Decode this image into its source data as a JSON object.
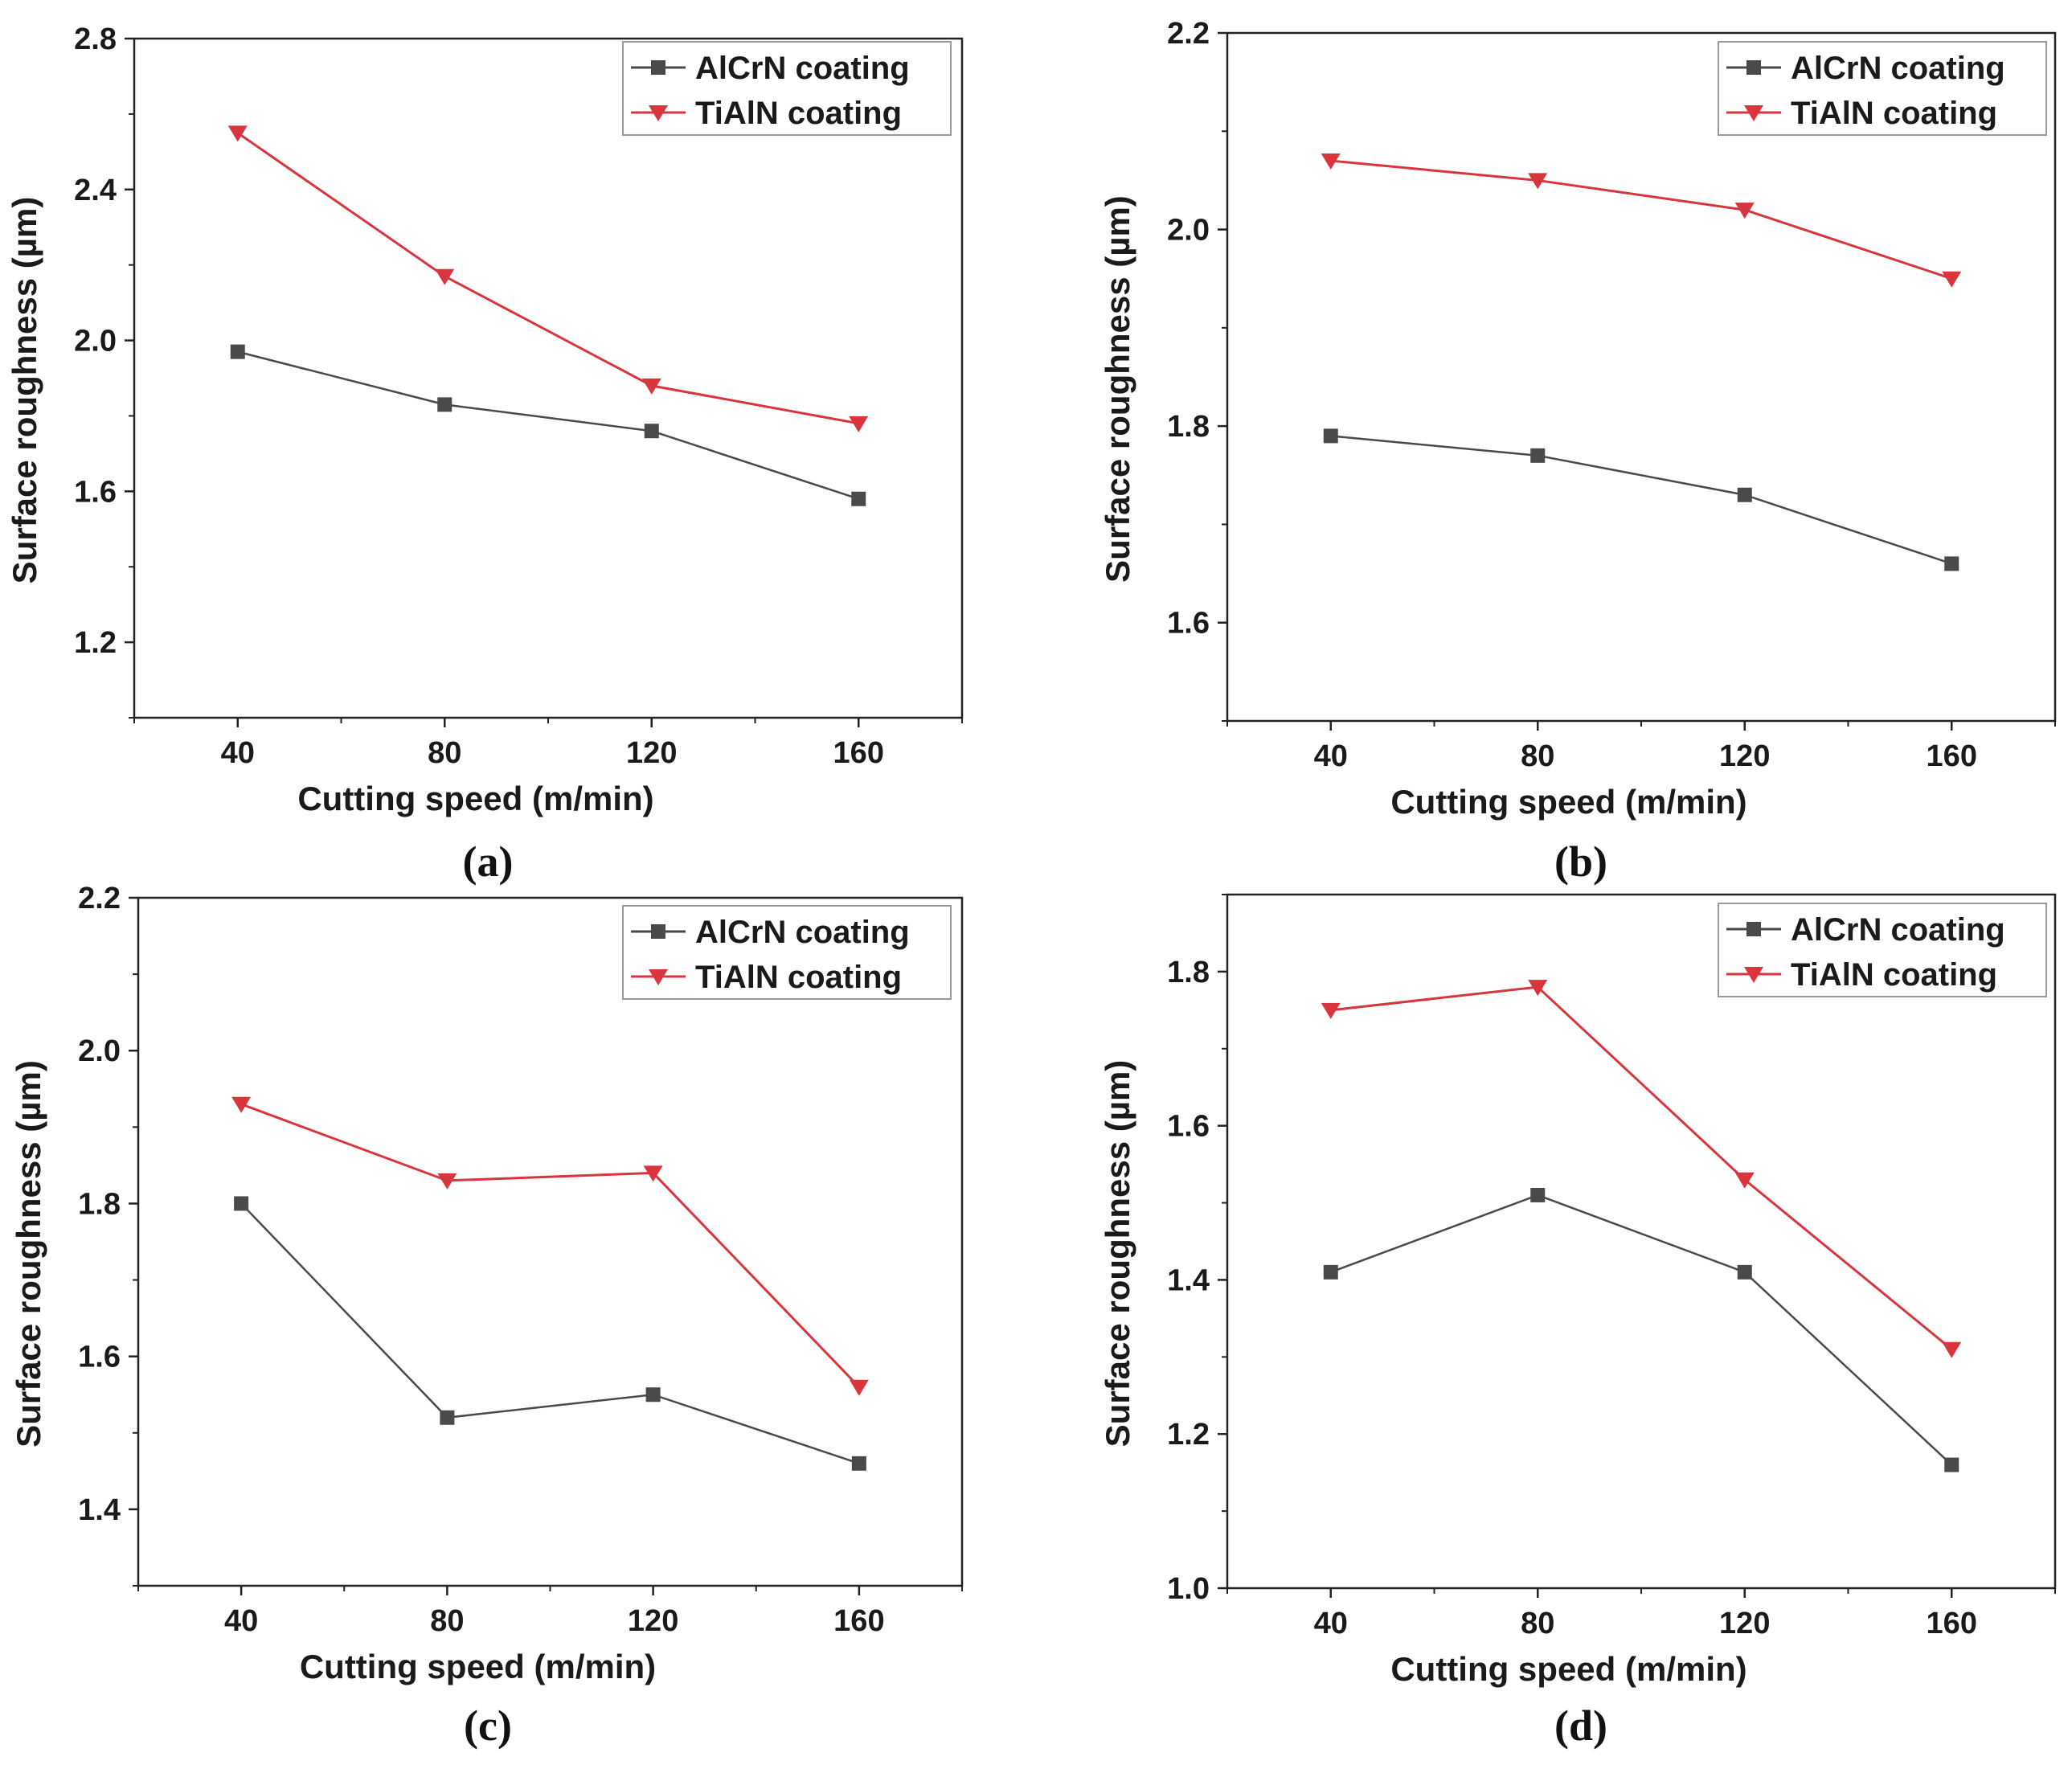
{
  "colors": {
    "aicrn": "#4a4a4a",
    "tiain": "#d8353c",
    "axis": "#222222"
  },
  "chart_data": [
    {
      "type": "line",
      "panel_label": "(a)",
      "xlabel": "Cutting speed (m/min)",
      "ylabel": "Surface roughness (µm)",
      "x": [
        40,
        80,
        120,
        160
      ],
      "xlim": [
        20,
        180
      ],
      "xticks": [
        40,
        80,
        120,
        160
      ],
      "xtick_labels": [
        "40",
        "80",
        "120",
        "160"
      ],
      "ylim": [
        1.0,
        2.8
      ],
      "yticks": [
        1.2,
        1.6,
        2.0,
        2.4,
        2.8
      ],
      "ytick_labels": [
        "1.2",
        "1.6",
        "2.0",
        "2.4",
        "2.8"
      ],
      "legend": "top-right",
      "series": [
        {
          "name": "AlCrN coating",
          "marker": "square",
          "values": [
            1.97,
            1.83,
            1.76,
            1.58
          ]
        },
        {
          "name": "TiAlN coating",
          "marker": "triangle-down",
          "values": [
            2.55,
            2.17,
            1.88,
            1.78
          ]
        }
      ]
    },
    {
      "type": "line",
      "panel_label": "(b)",
      "xlabel": "Cutting speed (m/min)",
      "ylabel": "Surface roughness (µm)",
      "x": [
        40,
        80,
        120,
        160
      ],
      "xlim": [
        20,
        180
      ],
      "xticks": [
        40,
        80,
        120,
        160
      ],
      "xtick_labels": [
        "40",
        "80",
        "120",
        "160"
      ],
      "ylim": [
        1.5,
        2.2
      ],
      "yticks": [
        1.6,
        1.8,
        2.0,
        2.2
      ],
      "ytick_labels": [
        "1.6",
        "1.8",
        "2.0",
        "2.2"
      ],
      "legend": "top-right",
      "series": [
        {
          "name": "AlCrN coating",
          "marker": "square",
          "values": [
            1.79,
            1.77,
            1.73,
            1.66
          ]
        },
        {
          "name": "TiAlN coating",
          "marker": "triangle-down",
          "values": [
            2.07,
            2.05,
            2.02,
            1.95
          ]
        }
      ]
    },
    {
      "type": "line",
      "panel_label": "(c)",
      "xlabel": "Cutting speed (m/min)",
      "ylabel": "Surface roughness (µm)",
      "x": [
        40,
        80,
        120,
        160
      ],
      "xlim": [
        20,
        180
      ],
      "xticks": [
        40,
        80,
        120,
        160
      ],
      "xtick_labels": [
        "40",
        "80",
        "120",
        "160"
      ],
      "ylim": [
        1.3,
        2.2
      ],
      "yticks": [
        1.4,
        1.6,
        1.8,
        2.0,
        2.2
      ],
      "ytick_labels": [
        "1.4",
        "1.6",
        "1.8",
        "2.0",
        "2.2"
      ],
      "legend": "top-right",
      "series": [
        {
          "name": "AlCrN coating",
          "marker": "square",
          "values": [
            1.8,
            1.52,
            1.55,
            1.46
          ]
        },
        {
          "name": "TiAlN coating",
          "marker": "triangle-down",
          "values": [
            1.93,
            1.83,
            1.84,
            1.56
          ]
        }
      ]
    },
    {
      "type": "line",
      "panel_label": "(d)",
      "xlabel": "Cutting speed (m/min)",
      "ylabel": "Surface roughness (µm)",
      "x": [
        40,
        80,
        120,
        160
      ],
      "xlim": [
        20,
        180
      ],
      "xticks": [
        40,
        80,
        120,
        160
      ],
      "xtick_labels": [
        "40",
        "80",
        "120",
        "160"
      ],
      "ylim": [
        1.0,
        1.9
      ],
      "yticks": [
        1.0,
        1.2,
        1.4,
        1.6,
        1.8
      ],
      "ytick_labels": [
        "1.0",
        "1.2",
        "1.4",
        "1.6",
        "1.8"
      ],
      "legend": "top-right",
      "series": [
        {
          "name": "AlCrN coating",
          "marker": "square",
          "values": [
            1.41,
            1.51,
            1.41,
            1.16
          ]
        },
        {
          "name": "TiAlN coating",
          "marker": "triangle-down",
          "values": [
            1.75,
            1.78,
            1.53,
            1.31
          ]
        }
      ]
    }
  ]
}
